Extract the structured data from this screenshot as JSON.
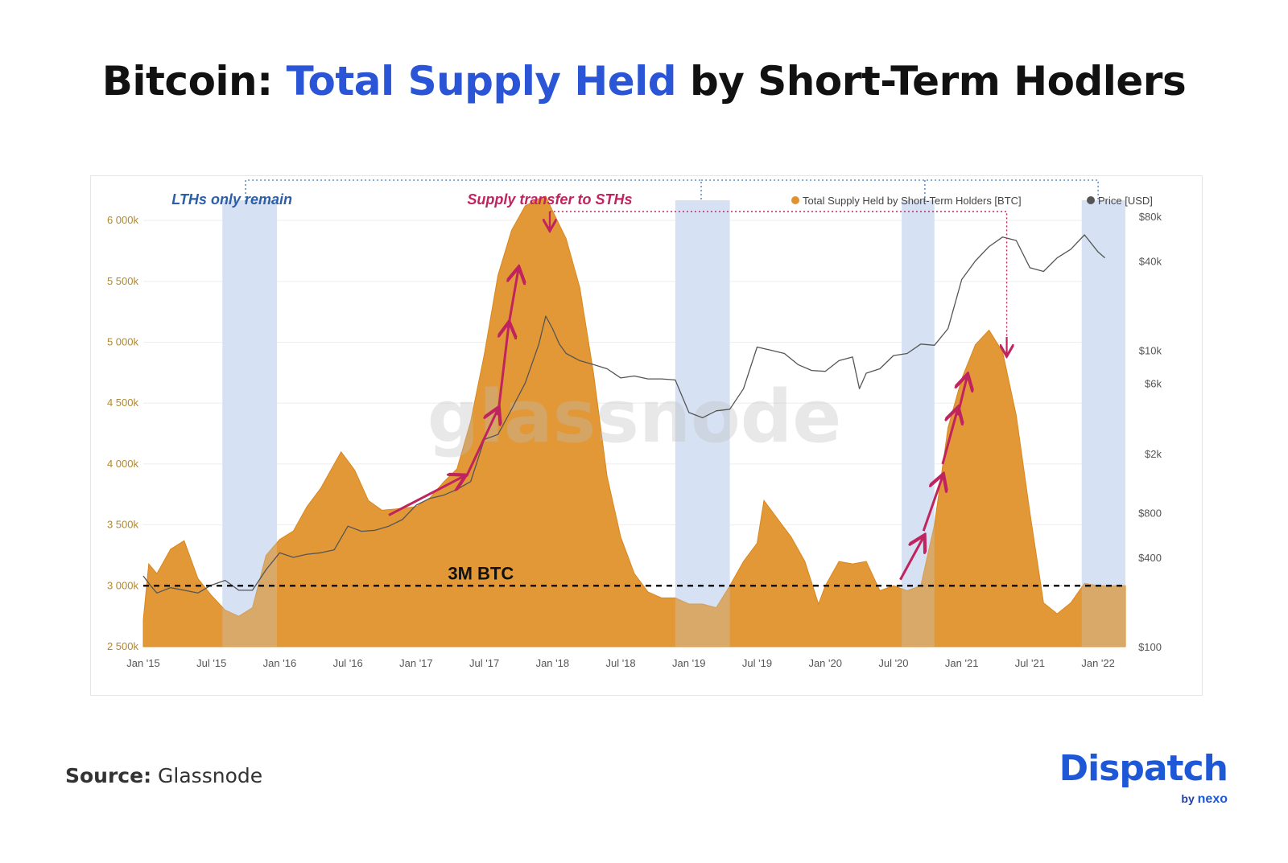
{
  "page": {
    "title_part1": "Bitcoin: ",
    "title_highlight": "Total Supply Held",
    "title_part2": " by Short-Term Hodlers",
    "source_label": "Source:",
    "source_value": " Glassnode",
    "brand_name": "Dispatch",
    "brand_by": "by",
    "brand_partner": "nexo",
    "accent_color": "#2a55d6"
  },
  "chart_data": {
    "type": "area",
    "watermark": "glassnode",
    "colors": {
      "supply": "#e0922c",
      "price": "#555555",
      "lth_band": "#dde7f5",
      "arrow": "#c0245f",
      "lth_text": "#2d5fa6",
      "left_axis": "#b08830"
    },
    "legend": [
      {
        "name": "Total Supply Held by Short-Term Holders [BTC]",
        "color": "#e0922c"
      },
      {
        "name": "Price [USD]",
        "color": "#555555"
      }
    ],
    "legend_position": "top-right",
    "annotations": {
      "lth": "LTHs only remain",
      "transfer": "Supply transfer to STHs",
      "threshold_label": "3M BTC"
    },
    "threshold": 3000,
    "x_ticks": [
      "Jan '15",
      "Jul '15",
      "Jan '16",
      "Jul '16",
      "Jan '17",
      "Jul '17",
      "Jan '18",
      "Jul '18",
      "Jan '19",
      "Jul '19",
      "Jan '20",
      "Jul '20",
      "Jan '21",
      "Jul '21",
      "Jan '22"
    ],
    "x_range": [
      2015.0,
      2022.2
    ],
    "y_left": {
      "ticks": [
        2500,
        3000,
        3500,
        4000,
        4500,
        5000,
        5500,
        6000
      ],
      "labels": [
        "2 500k",
        "3 000k",
        "3 500k",
        "4 000k",
        "4 500k",
        "5 000k",
        "5 500k",
        "6 000k"
      ],
      "range": [
        2500,
        6100
      ],
      "unit": "k BTC"
    },
    "y_right": {
      "scale": "log",
      "ticks": [
        100,
        400,
        800,
        2000,
        6000,
        10000,
        40000,
        80000
      ],
      "labels": [
        "$100",
        "$400",
        "$800",
        "$2k",
        "$6k",
        "$10k",
        "$40k",
        "$80k"
      ],
      "range": [
        100,
        80000
      ]
    },
    "lth_periods": [
      [
        2015.58,
        2015.98
      ],
      [
        2018.9,
        2019.3
      ],
      [
        2020.56,
        2020.8
      ],
      [
        2021.88,
        2022.2
      ]
    ],
    "supply_series": {
      "name": "Total Supply Held by Short-Term Holders [BTC]",
      "x": [
        2015.0,
        2015.04,
        2015.1,
        2015.2,
        2015.3,
        2015.4,
        2015.5,
        2015.6,
        2015.7,
        2015.8,
        2015.9,
        2016.0,
        2016.1,
        2016.2,
        2016.3,
        2016.45,
        2016.55,
        2016.65,
        2016.75,
        2016.85,
        2017.0,
        2017.1,
        2017.2,
        2017.3,
        2017.4,
        2017.5,
        2017.6,
        2017.7,
        2017.8,
        2017.9,
        2017.95,
        2018.0,
        2018.1,
        2018.2,
        2018.3,
        2018.4,
        2018.5,
        2018.6,
        2018.7,
        2018.8,
        2018.9,
        2019.0,
        2019.1,
        2019.2,
        2019.3,
        2019.4,
        2019.5,
        2019.55,
        2019.65,
        2019.75,
        2019.85,
        2019.95,
        2020.0,
        2020.1,
        2020.2,
        2020.3,
        2020.4,
        2020.5,
        2020.6,
        2020.7,
        2020.8,
        2020.9,
        2021.0,
        2021.1,
        2021.2,
        2021.3,
        2021.4,
        2021.5,
        2021.6,
        2021.7,
        2021.8,
        2021.9,
        2022.0,
        2022.1,
        2022.2
      ],
      "values": [
        2720,
        3180,
        3100,
        3300,
        3370,
        3060,
        2920,
        2800,
        2750,
        2820,
        3250,
        3380,
        3450,
        3650,
        3800,
        4100,
        3950,
        3700,
        3620,
        3630,
        3650,
        3720,
        3850,
        3960,
        4350,
        4900,
        5550,
        5920,
        6120,
        6180,
        6200,
        6080,
        5850,
        5450,
        4750,
        3900,
        3400,
        3100,
        2950,
        2900,
        2900,
        2850,
        2850,
        2820,
        3000,
        3200,
        3350,
        3700,
        3550,
        3400,
        3200,
        2850,
        3000,
        3200,
        3180,
        3200,
        2960,
        3000,
        2960,
        3000,
        3500,
        4300,
        4700,
        4980,
        5100,
        4920,
        4400,
        3600,
        2860,
        2770,
        2860,
        3020,
        3000,
        3000,
        3000
      ]
    },
    "price_series": {
      "name": "Price [USD]",
      "x": [
        2015.0,
        2015.05,
        2015.1,
        2015.2,
        2015.3,
        2015.4,
        2015.5,
        2015.6,
        2015.7,
        2015.8,
        2015.9,
        2016.0,
        2016.1,
        2016.2,
        2016.3,
        2016.4,
        2016.5,
        2016.6,
        2016.7,
        2016.8,
        2016.9,
        2017.0,
        2017.1,
        2017.2,
        2017.3,
        2017.4,
        2017.5,
        2017.6,
        2017.7,
        2017.8,
        2017.9,
        2017.95,
        2018.0,
        2018.05,
        2018.1,
        2018.2,
        2018.3,
        2018.4,
        2018.5,
        2018.6,
        2018.7,
        2018.8,
        2018.9,
        2019.0,
        2019.1,
        2019.2,
        2019.3,
        2019.4,
        2019.5,
        2019.6,
        2019.7,
        2019.8,
        2019.9,
        2020.0,
        2020.1,
        2020.2,
        2020.25,
        2020.3,
        2020.4,
        2020.5,
        2020.6,
        2020.7,
        2020.8,
        2020.9,
        2021.0,
        2021.1,
        2021.2,
        2021.3,
        2021.4,
        2021.5,
        2021.6,
        2021.7,
        2021.8,
        2021.9,
        2022.0,
        2022.05
      ],
      "values": [
        300,
        260,
        230,
        250,
        240,
        230,
        260,
        280,
        240,
        240,
        330,
        430,
        400,
        420,
        430,
        450,
        650,
        600,
        610,
        650,
        720,
        900,
        1000,
        1050,
        1150,
        1300,
        2500,
        2700,
        4000,
        6000,
        11000,
        17000,
        14000,
        11000,
        9500,
        8500,
        8000,
        7500,
        6500,
        6700,
        6400,
        6400,
        6300,
        3800,
        3500,
        3900,
        4000,
        5500,
        10500,
        10000,
        9500,
        8000,
        7300,
        7200,
        8500,
        9000,
        5500,
        7000,
        7500,
        9200,
        9500,
        11000,
        10800,
        14000,
        30000,
        40000,
        50000,
        58000,
        55000,
        36000,
        34000,
        42000,
        48000,
        60000,
        46000,
        42000
      ]
    }
  }
}
